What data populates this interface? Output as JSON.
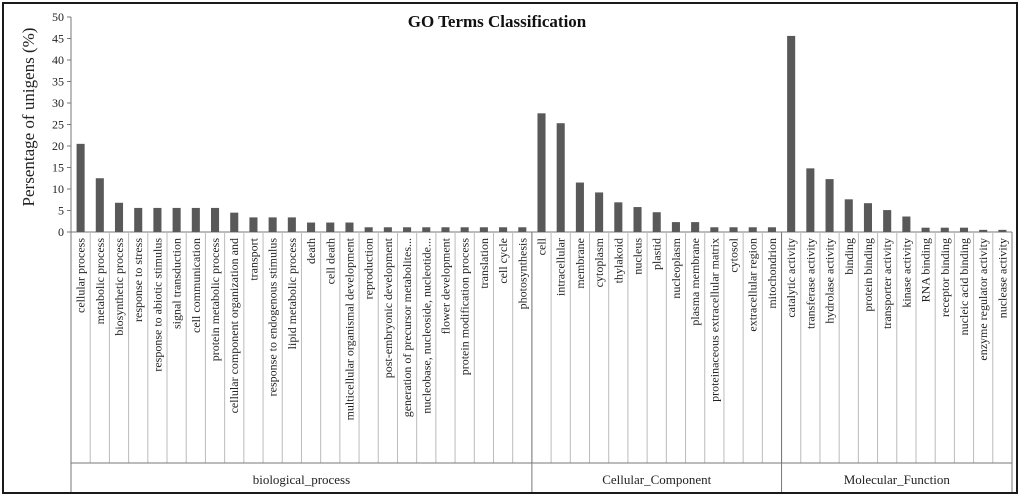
{
  "chart_data": {
    "type": "bar",
    "title": "GO Terms Classification",
    "ylabel": "Persentage of unigens (%)",
    "ylim": [
      0,
      50
    ],
    "yticks": [
      0,
      5,
      10,
      15,
      20,
      25,
      30,
      35,
      40,
      45,
      50
    ],
    "bar_color": "#595959",
    "grid": false,
    "legend": "none",
    "groups": [
      {
        "name": "biological_process",
        "categories": [
          "cellular process",
          "metabolic process",
          "biosynthetic process",
          "response to stress",
          "response to abiotic stimulus",
          "signal transduction",
          "cell communication",
          "protein metabolic process",
          "cellular component organization and",
          "transport",
          "response to endogenous stimulus",
          "lipid metabolic process",
          "death",
          "cell death",
          "multicellular organismal development",
          "reproduction",
          "post-embryonic development",
          "generation of precursor metabolites...",
          "nucleobase, nucleoside, nucleotide...",
          "flower development",
          "protein modification process",
          "translation",
          "cell cycle",
          "photosynthesis"
        ],
        "values": [
          20.5,
          12.5,
          6.8,
          5.6,
          5.6,
          5.6,
          5.6,
          5.6,
          4.5,
          3.4,
          3.4,
          3.4,
          2.2,
          2.2,
          2.2,
          1.1,
          1.1,
          1.1,
          1.1,
          1.1,
          1.1,
          1.1,
          1.1,
          1.1
        ]
      },
      {
        "name": "Cellular_Component",
        "categories": [
          "cell",
          "intracellular",
          "membrane",
          "cytoplasm",
          "thylakoid",
          "nucleus",
          "plastid",
          "nucleoplasm",
          "plasma membrane",
          "proteinaceous extracellular matrix",
          "cytosol",
          "extracellular region",
          "mitochondrion"
        ],
        "values": [
          27.6,
          25.3,
          11.5,
          9.2,
          6.9,
          5.8,
          4.6,
          2.3,
          2.3,
          1.1,
          1.1,
          1.1,
          1.1
        ]
      },
      {
        "name": "Molecular_Function",
        "categories": [
          "catalytic activity",
          "transferase activity",
          "hydrolase activity",
          "binding",
          "protein binding",
          "transporter activity",
          "kinase activity",
          "RNA binding",
          "receptor binding",
          "nucleic acid binding",
          "enzyme regulator activity",
          "nuclease activity"
        ],
        "values": [
          45.6,
          14.8,
          12.3,
          7.6,
          6.7,
          5.1,
          3.6,
          1.0,
          1.0,
          1.0,
          0.5,
          0.5
        ]
      }
    ]
  }
}
